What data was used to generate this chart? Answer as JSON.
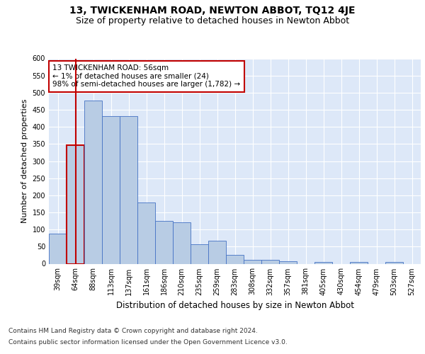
{
  "title": "13, TWICKENHAM ROAD, NEWTON ABBOT, TQ12 4JE",
  "subtitle": "Size of property relative to detached houses in Newton Abbot",
  "xlabel": "Distribution of detached houses by size in Newton Abbot",
  "ylabel": "Number of detached properties",
  "footer_line1": "Contains HM Land Registry data © Crown copyright and database right 2024.",
  "footer_line2": "Contains public sector information licensed under the Open Government Licence v3.0.",
  "categories": [
    "39sqm",
    "64sqm",
    "88sqm",
    "113sqm",
    "137sqm",
    "161sqm",
    "186sqm",
    "210sqm",
    "235sqm",
    "259sqm",
    "283sqm",
    "308sqm",
    "332sqm",
    "357sqm",
    "381sqm",
    "405sqm",
    "430sqm",
    "454sqm",
    "479sqm",
    "503sqm",
    "527sqm"
  ],
  "values": [
    88,
    347,
    477,
    431,
    431,
    180,
    125,
    122,
    57,
    67,
    25,
    12,
    12,
    8,
    0,
    5,
    0,
    5,
    0,
    5,
    0
  ],
  "bar_color": "#b8cce4",
  "bar_edge_color": "#4472c4",
  "highlight_index": 1,
  "highlight_bar_edge_color": "#c00000",
  "annotation_text": "13 TWICKENHAM ROAD: 56sqm\n← 1% of detached houses are smaller (24)\n98% of semi-detached houses are larger (1,782) →",
  "annotation_box_edge_color": "#c00000",
  "ylim": [
    0,
    600
  ],
  "yticks": [
    0,
    50,
    100,
    150,
    200,
    250,
    300,
    350,
    400,
    450,
    500,
    550,
    600
  ],
  "plot_bg_color": "#dde8f8",
  "grid_color": "#ffffff",
  "vline_color": "#c00000",
  "title_fontsize": 10,
  "subtitle_fontsize": 9,
  "tick_fontsize": 7,
  "ylabel_fontsize": 8,
  "xlabel_fontsize": 8.5,
  "footer_fontsize": 6.5,
  "fig_bg_color": "#ffffff"
}
